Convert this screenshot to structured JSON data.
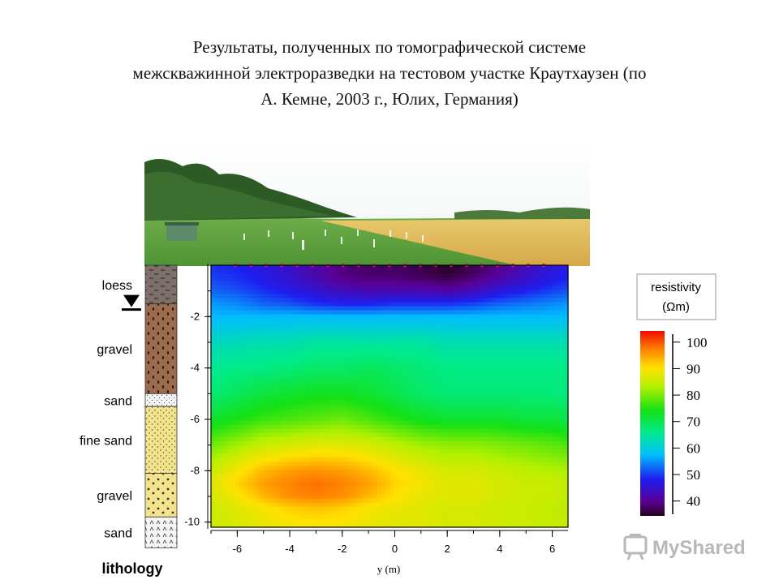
{
  "title_lines": [
    "Результаты, полученных по томографической системе",
    "межскважинной электроразведки на тестовом участке Краутхаузен (по",
    "А. Кемне, 2003 г., Юлих, Германия)"
  ],
  "lithology": {
    "label": "lithology",
    "layers": [
      {
        "name": "loess",
        "top": 0,
        "bottom": -1.5,
        "color": "#7d706a"
      },
      {
        "name": "gravel",
        "top": -1.5,
        "bottom": -5.0,
        "color": "#9b6b4b"
      },
      {
        "name": "sand",
        "top": -5.0,
        "bottom": -5.5,
        "color": "#f3f3f3"
      },
      {
        "name": "fine sand",
        "top": -5.5,
        "bottom": -8.1,
        "color": "#f3e38a"
      },
      {
        "name": "gravel",
        "top": -8.1,
        "bottom": -9.8,
        "color": "#f3e38a"
      },
      {
        "name": "sand",
        "top": -9.8,
        "bottom": -11.0,
        "color": "#f3f3f3"
      }
    ],
    "water_table_depth": -1.6
  },
  "colorbar": {
    "title_line1": "resistivity",
    "title_line2": "(Ωm)",
    "ticks": [
      "100",
      "90",
      "80",
      "70",
      "60",
      "50",
      "40"
    ]
  },
  "watermark": {
    "text": "MyShared",
    "icon": "presentation-board-icon"
  },
  "colors": {
    "background": "#ffffff",
    "frame": "#000000"
  },
  "chart_data": {
    "type": "heatmap",
    "title": "",
    "xlabel": "y (m)",
    "ylabel": "",
    "xlim": [
      -7,
      6.6
    ],
    "ylim": [
      -10.2,
      0
    ],
    "xticks": [
      -6,
      -4,
      -2,
      0,
      2,
      4,
      6
    ],
    "yticks": [
      -2,
      -4,
      -6,
      -8,
      -10
    ],
    "value_range": [
      35,
      105
    ],
    "x": [
      -7,
      -6,
      -5,
      -4,
      -3,
      -2,
      -1,
      0,
      1,
      2,
      3,
      4,
      5,
      6,
      6.6
    ],
    "y": [
      0,
      -0.5,
      -1,
      -1.5,
      -2,
      -3,
      -4,
      -5,
      -6,
      -7,
      -8,
      -8.5,
      -9,
      -9.5,
      -10.2
    ],
    "values": [
      [
        50,
        49,
        47,
        45,
        42,
        39,
        38,
        38,
        37,
        35,
        37,
        40,
        44,
        47,
        48
      ],
      [
        51,
        50,
        48,
        46,
        43,
        40,
        39,
        39,
        38,
        37,
        39,
        42,
        45,
        48,
        49
      ],
      [
        53,
        52,
        50,
        48,
        46,
        44,
        43,
        43,
        43,
        42,
        44,
        47,
        49,
        51,
        52
      ],
      [
        56,
        55,
        53,
        52,
        50,
        49,
        49,
        50,
        50,
        50,
        51,
        53,
        54,
        55,
        56
      ],
      [
        58,
        58,
        58,
        58,
        58,
        58,
        58,
        58,
        58,
        58,
        58,
        58,
        58,
        58,
        58
      ],
      [
        63,
        63,
        64,
        64,
        65,
        65,
        65,
        65,
        65,
        64,
        64,
        64,
        64,
        64,
        64
      ],
      [
        66,
        67,
        67,
        68,
        69,
        69,
        70,
        69,
        68,
        67,
        67,
        67,
        67,
        67,
        67
      ],
      [
        68,
        70,
        72,
        73,
        74,
        74,
        73,
        71,
        69,
        68,
        68,
        68,
        68,
        68,
        67
      ],
      [
        73,
        75,
        77,
        78,
        79,
        80,
        78,
        76,
        74,
        73,
        73,
        73,
        72,
        72,
        71
      ],
      [
        80,
        83,
        86,
        87,
        88,
        88,
        87,
        85,
        83,
        82,
        82,
        81,
        80,
        79,
        78
      ],
      [
        86,
        90,
        94,
        96,
        97,
        96,
        94,
        91,
        89,
        87,
        87,
        86,
        85,
        84,
        84
      ],
      [
        88,
        92,
        96,
        98,
        99,
        98,
        96,
        92,
        90,
        88,
        88,
        87,
        86,
        86,
        85
      ],
      [
        87,
        90,
        94,
        97,
        98,
        97,
        94,
        91,
        89,
        88,
        88,
        87,
        86,
        86,
        85
      ],
      [
        86,
        88,
        90,
        92,
        93,
        92,
        90,
        89,
        88,
        87,
        87,
        86,
        86,
        85,
        85
      ],
      [
        86,
        87,
        89,
        90,
        90,
        90,
        89,
        88,
        88,
        87,
        87,
        87,
        86,
        86,
        86
      ]
    ]
  }
}
